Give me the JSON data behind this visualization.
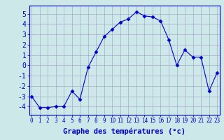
{
  "hours": [
    0,
    1,
    2,
    3,
    4,
    5,
    6,
    7,
    8,
    9,
    10,
    11,
    12,
    13,
    14,
    15,
    16,
    17,
    18,
    19,
    20,
    21,
    22,
    23
  ],
  "temperatures": [
    -3.0,
    -4.1,
    -4.1,
    -4.0,
    -4.0,
    -2.5,
    -3.3,
    -0.2,
    1.3,
    2.8,
    3.5,
    4.2,
    4.5,
    5.2,
    4.8,
    4.7,
    4.3,
    2.5,
    0.0,
    1.5,
    0.8,
    0.8,
    -2.5,
    -0.7
  ],
  "xlabel": "Graphe des températures (°c)",
  "ylim": [
    -4.8,
    5.8
  ],
  "xlim": [
    -0.3,
    23.3
  ],
  "yticks": [
    -4,
    -3,
    -2,
    -1,
    0,
    1,
    2,
    3,
    4,
    5
  ],
  "xticks": [
    0,
    1,
    2,
    3,
    4,
    5,
    6,
    7,
    8,
    9,
    10,
    11,
    12,
    13,
    14,
    15,
    16,
    17,
    18,
    19,
    20,
    21,
    22,
    23
  ],
  "line_color": "#0000cc",
  "marker": "D",
  "marker_size": 2.5,
  "bg_color": "#cce8e8",
  "grid_color": "#aaaacc",
  "axis_color": "#0000cc",
  "xlabel_color": "#0000cc",
  "xlabel_fontsize": 7.5,
  "ytick_fontsize": 7,
  "xtick_fontsize": 5.5
}
